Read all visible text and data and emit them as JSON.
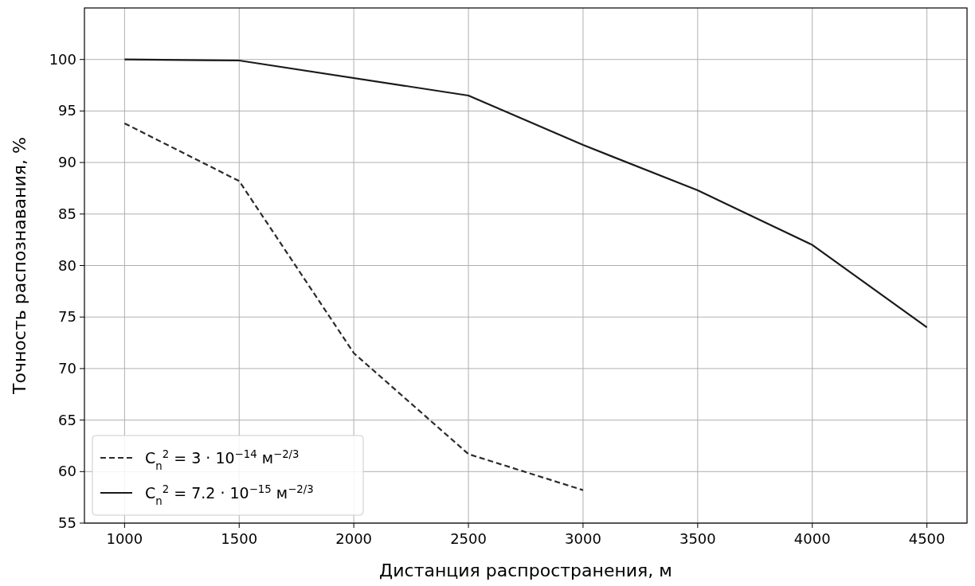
{
  "chart_data": {
    "type": "line",
    "xlabel": "Дистанция распространения, м",
    "ylabel": "Точность распознавания, %",
    "xlim": [
      825,
      4675
    ],
    "xticks": [
      1000,
      1500,
      2000,
      2500,
      3000,
      3500,
      4000,
      4500
    ],
    "ylim": [
      55,
      105
    ],
    "yticks": [
      55,
      60,
      65,
      70,
      75,
      80,
      85,
      90,
      95,
      100
    ],
    "grid": true,
    "legend": "bottom left",
    "series": [
      {
        "name": "C$_{n}$$^{2}$ = 3 · 10$^{−14}$  м$^{−2/3}$",
        "color": "#2b2b2b",
        "line_style": "dashed",
        "x": [
          1000,
          1500,
          2000,
          2500,
          3000
        ],
        "values": [
          93.8,
          88.2,
          71.5,
          61.7,
          58.2
        ]
      },
      {
        "name": "C$_{n}$$^{2}$ = 7.2 · 10$^{−15}$  м$^{−2/3}$",
        "color": "#1a1a1a",
        "line_style": "solid",
        "x": [
          1000,
          1500,
          2500,
          3000,
          3500,
          4000,
          4500
        ],
        "values": [
          100.0,
          99.9,
          96.5,
          91.7,
          87.3,
          82.0,
          74.0
        ]
      }
    ]
  }
}
